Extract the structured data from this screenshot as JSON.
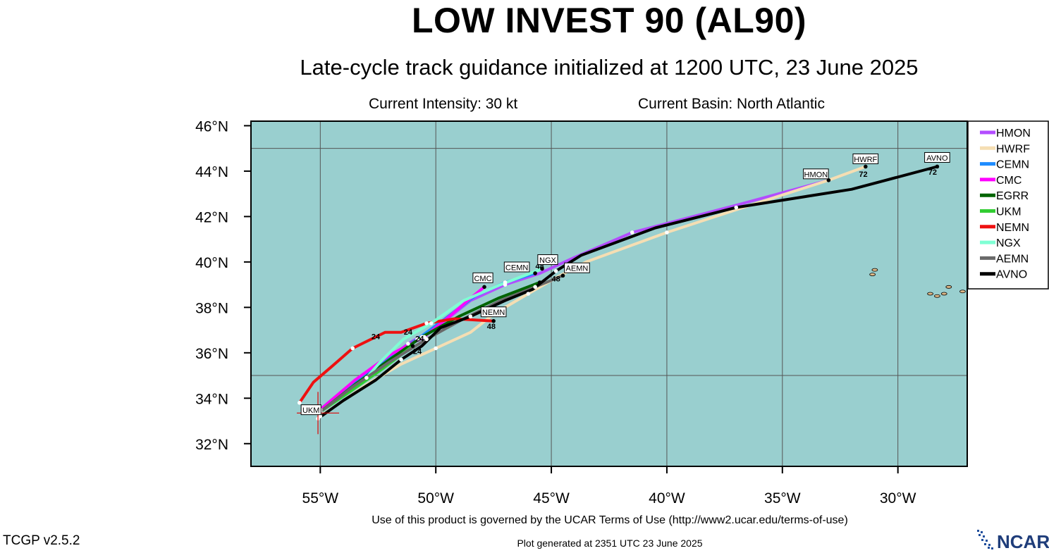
{
  "header": {
    "title": "LOW INVEST 90 (AL90)",
    "subtitle": "Late-cycle track guidance initialized at 1200 UTC, 23 June 2025",
    "intensity": "Current Intensity: 30 kt",
    "basin": "Current Basin: North Atlantic"
  },
  "footer": {
    "terms": "Use of this product is governed by the UCAR Terms of Use (http://www2.ucar.edu/terms-of-use)",
    "version": "TCGP v2.5.2",
    "generated": "Plot generated at 2351 UTC   23 June 2025",
    "logo_text": "NCAR"
  },
  "colors": {
    "ocean": "#99cfcf",
    "land": "#deb887"
  },
  "chart_data": {
    "type": "map-track",
    "xlim": [
      -58,
      -27
    ],
    "ylim": [
      31,
      46.2
    ],
    "x_ticks": [
      -55,
      -50,
      -45,
      -40,
      -35,
      -30
    ],
    "x_tick_labels": [
      "55°W",
      "50°W",
      "45°W",
      "40°W",
      "35°W",
      "30°W"
    ],
    "y_ticks": [
      32,
      34,
      36,
      38,
      40,
      42,
      44,
      46
    ],
    "y_tick_labels": [
      "32°N",
      "34°N",
      "36°N",
      "38°N",
      "40°N",
      "42°N",
      "44°N",
      "46°N"
    ],
    "grid": true,
    "grid_lon": [
      -55,
      -50,
      -45,
      -40,
      -35,
      -30
    ],
    "grid_lat": [
      35,
      45
    ],
    "legend_placement": "right",
    "current_position": {
      "lon": -55.1,
      "lat": 33.1
    },
    "series": [
      {
        "name": "HMON",
        "color": "#b34dff",
        "track": [
          [
            -55.0,
            33.5
          ],
          [
            -53.6,
            34.7
          ],
          [
            -52.5,
            35.4
          ],
          [
            -51.2,
            36.4
          ],
          [
            -50.0,
            37.1
          ],
          [
            -48.5,
            38.3
          ],
          [
            -47.0,
            39.0
          ],
          [
            -45.5,
            39.5
          ],
          [
            -44.0,
            40.2
          ],
          [
            -41.5,
            41.3
          ],
          [
            -37.0,
            42.5
          ],
          [
            -33.0,
            43.6
          ]
        ],
        "end_label": "HMON"
      },
      {
        "name": "HWRF",
        "color": "#f5deb3",
        "track": [
          [
            -55.0,
            33.2
          ],
          [
            -53.0,
            34.6
          ],
          [
            -51.5,
            35.5
          ],
          [
            -50.0,
            36.2
          ],
          [
            -48.5,
            36.9
          ],
          [
            -47.5,
            37.7
          ],
          [
            -46.0,
            38.6
          ],
          [
            -44.8,
            39.3
          ],
          [
            -43.5,
            40.0
          ],
          [
            -40.0,
            41.3
          ],
          [
            -37.0,
            42.3
          ],
          [
            -33.0,
            43.6
          ],
          [
            -31.4,
            44.2
          ]
        ],
        "end_label": "HWRF",
        "hour_labels": [
          {
            "lon": -31.5,
            "lat": 43.75,
            "text": "72"
          }
        ]
      },
      {
        "name": "CEMN",
        "color": "#1e8cff",
        "track": [
          [
            -55.0,
            33.5
          ],
          [
            -53.4,
            34.8
          ],
          [
            -52.0,
            35.8
          ],
          [
            -50.8,
            36.6
          ],
          [
            -49.6,
            37.5
          ],
          [
            -48.3,
            38.5
          ],
          [
            -47.0,
            39.1
          ],
          [
            -45.7,
            39.5
          ]
        ],
        "end_label": "CEMN",
        "hour_labels": [
          {
            "lon": -45.5,
            "lat": 39.7,
            "text": "48"
          }
        ]
      },
      {
        "name": "CMC",
        "color": "#ff00ff",
        "track": [
          [
            -55.0,
            33.5
          ],
          [
            -53.5,
            34.8
          ],
          [
            -52.0,
            35.9
          ],
          [
            -50.5,
            36.7
          ],
          [
            -49.3,
            37.7
          ],
          [
            -48.5,
            38.4
          ],
          [
            -47.9,
            38.9
          ]
        ],
        "end_label": "CMC"
      },
      {
        "name": "EGRR",
        "color": "#006400",
        "track": [
          [
            -55.0,
            33.4
          ],
          [
            -53.5,
            34.6
          ],
          [
            -52.0,
            35.7
          ],
          [
            -50.6,
            36.7
          ],
          [
            -49.0,
            37.6
          ],
          [
            -47.3,
            38.4
          ],
          [
            -45.5,
            39.1
          ]
        ],
        "end_label": ""
      },
      {
        "name": "UKM",
        "color": "#32cd32",
        "track": [
          [
            -55.0,
            33.4
          ],
          [
            -53.7,
            34.3
          ],
          [
            -52.3,
            35.3
          ],
          [
            -51.0,
            36.3
          ]
        ],
        "end_label": "UKM"
      },
      {
        "name": "NEMN",
        "color": "#ee1111",
        "track": [
          [
            -55.9,
            33.8
          ],
          [
            -55.3,
            34.7
          ],
          [
            -54.5,
            35.4
          ],
          [
            -53.6,
            36.2
          ],
          [
            -52.2,
            36.9
          ],
          [
            -51.5,
            36.9
          ],
          [
            -50.4,
            37.3
          ],
          [
            -49.2,
            37.5
          ],
          [
            -47.5,
            37.4
          ]
        ],
        "end_label": "NEMN",
        "hour_labels": [
          {
            "lon": -52.6,
            "lat": 36.6,
            "text": "24"
          },
          {
            "lon": -51.2,
            "lat": 36.8,
            "text": "24"
          },
          {
            "lon": -47.6,
            "lat": 37.05,
            "text": "48"
          }
        ]
      },
      {
        "name": "NGX",
        "color": "#7fffd4",
        "track": [
          [
            -53.0,
            34.9
          ],
          [
            -52.4,
            35.6
          ],
          [
            -51.4,
            36.6
          ],
          [
            -50.2,
            37.3
          ],
          [
            -48.8,
            38.3
          ],
          [
            -47.2,
            39.0
          ],
          [
            -45.4,
            39.7
          ]
        ],
        "end_label": "NGX"
      },
      {
        "name": "AEMN",
        "color": "#696969",
        "track": [
          [
            -55.0,
            33.4
          ],
          [
            -53.6,
            34.5
          ],
          [
            -52.0,
            35.6
          ],
          [
            -50.4,
            36.6
          ],
          [
            -48.8,
            37.5
          ],
          [
            -47.2,
            38.3
          ],
          [
            -45.7,
            38.9
          ],
          [
            -44.5,
            39.4
          ]
        ],
        "end_label": "AEMN",
        "hour_labels": [
          {
            "lon": -44.8,
            "lat": 39.15,
            "text": "48"
          }
        ]
      },
      {
        "name": "AVNO",
        "color": "#000000",
        "track": [
          [
            -55.1,
            33.1
          ],
          [
            -54.0,
            33.9
          ],
          [
            -52.6,
            34.8
          ],
          [
            -51.5,
            35.7
          ],
          [
            -50.6,
            36.3
          ],
          [
            -49.8,
            37.1
          ],
          [
            -48.5,
            37.6
          ],
          [
            -47.0,
            38.3
          ],
          [
            -45.8,
            38.8
          ],
          [
            -44.8,
            39.6
          ],
          [
            -43.7,
            40.3
          ],
          [
            -40.5,
            41.5
          ],
          [
            -37.0,
            42.4
          ],
          [
            -32.0,
            43.2
          ],
          [
            -28.3,
            44.2
          ]
        ],
        "end_label": "AVNO",
        "hour_labels": [
          {
            "lon": -50.8,
            "lat": 35.95,
            "text": "24"
          },
          {
            "lon": -50.7,
            "lat": 36.5,
            "text": "24"
          },
          {
            "lon": -28.5,
            "lat": 43.85,
            "text": "72"
          }
        ]
      }
    ],
    "islands": [
      {
        "lon": -31.1,
        "lat": 39.45
      },
      {
        "lon": -31.0,
        "lat": 39.65
      },
      {
        "lon": -28.6,
        "lat": 38.6
      },
      {
        "lon": -28.3,
        "lat": 38.5
      },
      {
        "lon": -28.0,
        "lat": 38.6
      },
      {
        "lon": -27.8,
        "lat": 38.9
      },
      {
        "lon": -27.2,
        "lat": 38.7
      }
    ]
  }
}
